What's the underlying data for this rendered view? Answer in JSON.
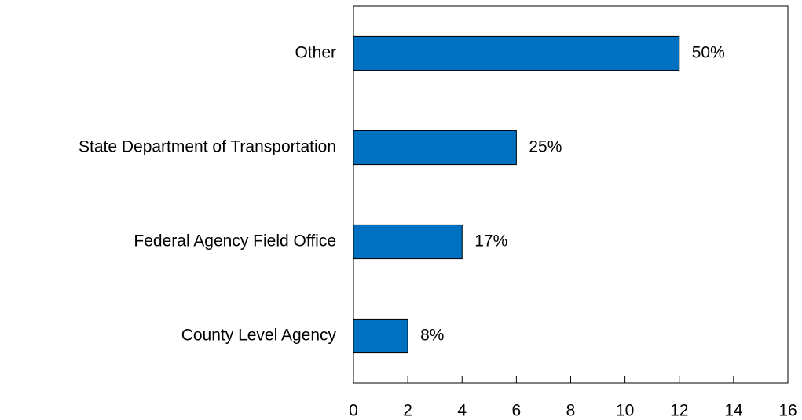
{
  "chart_data": {
    "type": "hbar",
    "categories": [
      "Other",
      "State Department of Transportation",
      "Federal Agency Field Office",
      "County Level Agency"
    ],
    "values": [
      12,
      6,
      4,
      2
    ],
    "value_labels": [
      "50%",
      "25%",
      "17%",
      "8%"
    ],
    "color": "#0070c0",
    "xlim": [
      0,
      16
    ],
    "xticks": [
      0,
      2,
      4,
      6,
      8,
      10,
      12,
      14,
      16
    ],
    "grid": false
  }
}
